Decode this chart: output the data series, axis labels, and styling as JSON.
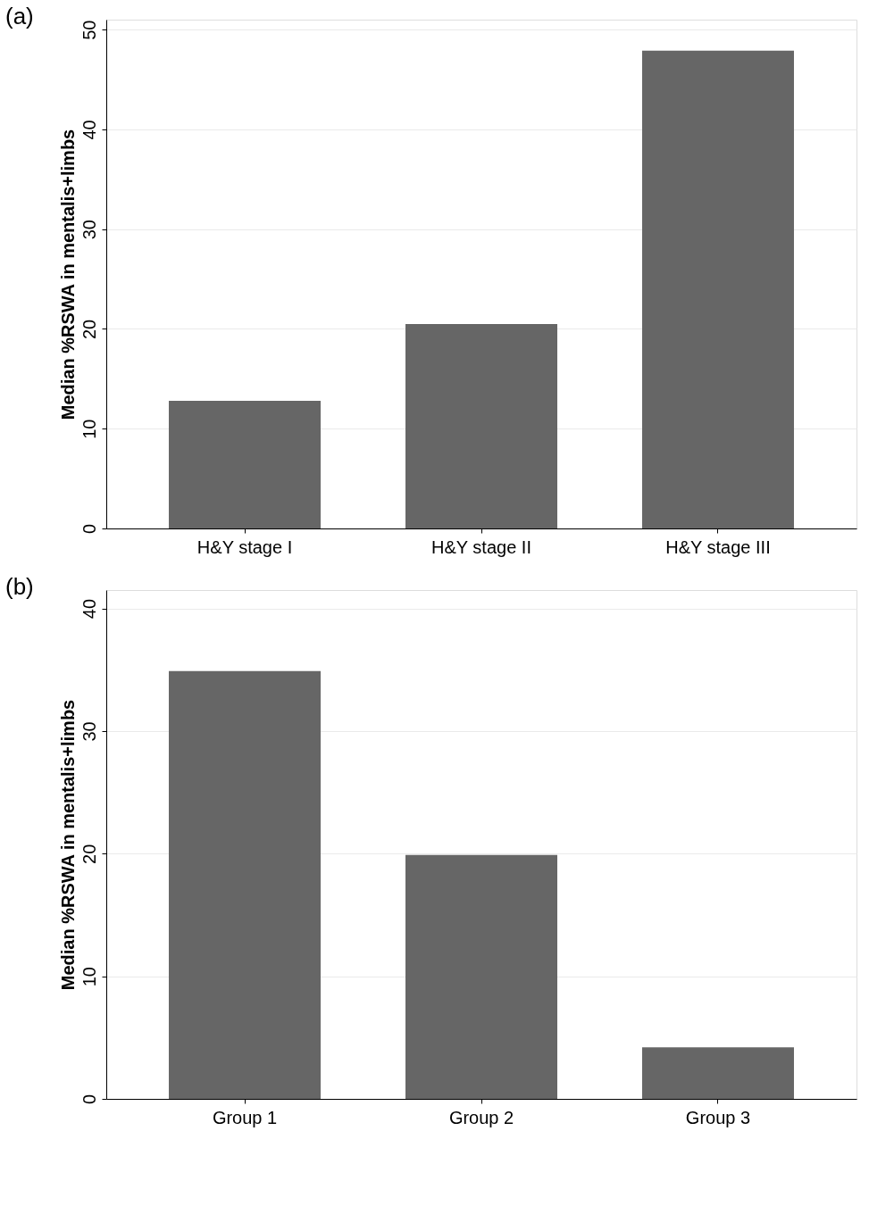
{
  "chart_data": [
    {
      "type": "bar",
      "title": "(a)",
      "ylabel": "Median %RSWA in mentalis+limbs",
      "categories": [
        "H&Y stage I",
        "H&Y stage II",
        "H&Y stage III"
      ],
      "values": [
        12.8,
        20.5,
        47.9
      ],
      "color": "#666666",
      "ylim": [
        0,
        51
      ],
      "yticks": [
        0,
        10,
        20,
        30,
        40,
        50
      ],
      "grid": "y"
    },
    {
      "type": "bar",
      "title": "(b)",
      "ylabel": "Median %RSWA in mentalis+limbs",
      "categories": [
        "Group 1",
        "Group 2",
        "Group 3"
      ],
      "values": [
        34.9,
        19.9,
        4.2
      ],
      "color": "#666666",
      "ylim": [
        0,
        41.5
      ],
      "yticks": [
        0,
        10,
        20,
        30,
        40
      ],
      "grid": "y"
    }
  ]
}
